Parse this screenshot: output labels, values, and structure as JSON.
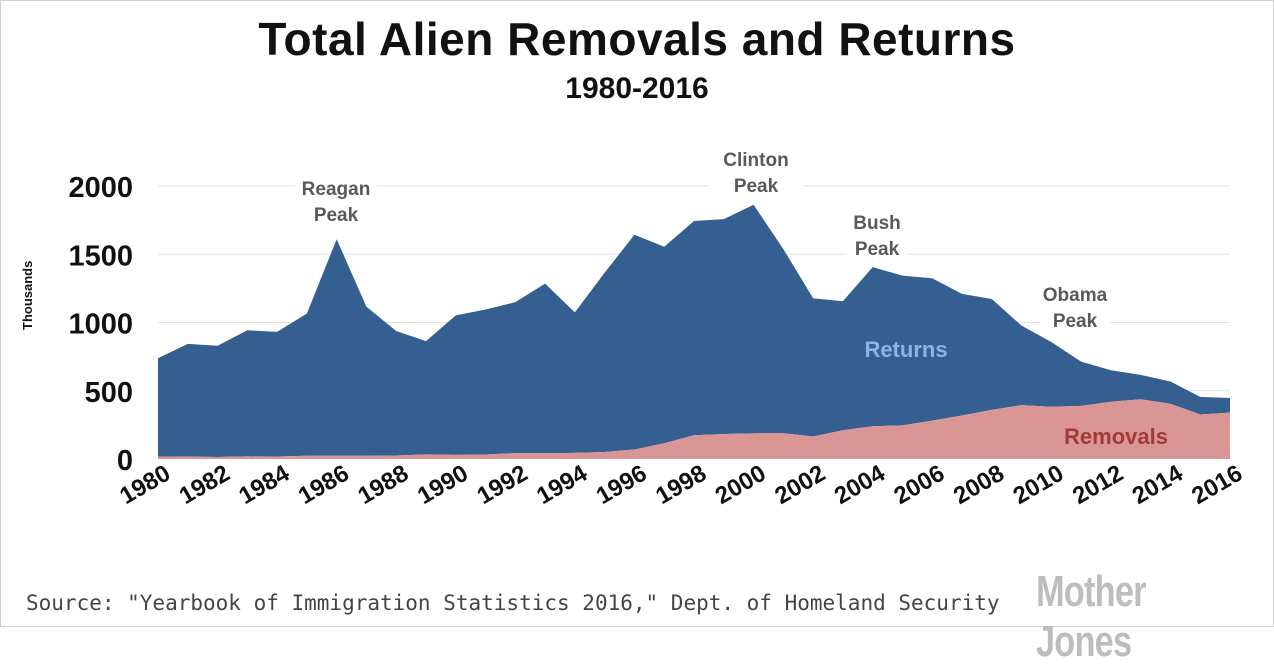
{
  "brand": "Mother Jones",
  "source": "Source: \"Yearbook of Immigration Statistics 2016,\" Dept. of Homeland Security",
  "colors": {
    "returns": "#365f91",
    "removals": "#d99694",
    "returns_label": "#8db3e2",
    "removals_label": "#a03b3a",
    "annotation": "#595959",
    "grid": "#e0e0e0"
  },
  "chart_data": {
    "type": "area",
    "title": "Total Alien Removals and Returns",
    "subtitle": "1980-2016",
    "ylabel": "Thousands",
    "xlabel": "",
    "ylim": [
      0,
      2000
    ],
    "yticks": [
      0,
      500,
      1000,
      1500,
      2000
    ],
    "grid": true,
    "stacked": true,
    "x": [
      1980,
      1981,
      1982,
      1983,
      1984,
      1985,
      1986,
      1987,
      1988,
      1989,
      1990,
      1991,
      1992,
      1993,
      1994,
      1995,
      1996,
      1997,
      1998,
      1999,
      2000,
      2001,
      2002,
      2003,
      2004,
      2005,
      2006,
      2007,
      2008,
      2009,
      2010,
      2011,
      2012,
      2013,
      2014,
      2015,
      2016
    ],
    "xtick_labels": [
      "1980",
      "1982",
      "1984",
      "1986",
      "1988",
      "1990",
      "1992",
      "1994",
      "1996",
      "1998",
      "2000",
      "2002",
      "2004",
      "2006",
      "2008",
      "2010",
      "2012",
      "2014",
      "2016"
    ],
    "series": [
      {
        "name": "Removals",
        "values": [
          18,
          17,
          15,
          19,
          18,
          24,
          24,
          24,
          26,
          34,
          30,
          33,
          43,
          42,
          45,
          51,
          70,
          115,
          174,
          183,
          188,
          189,
          165,
          211,
          240,
          246,
          281,
          319,
          360,
          395,
          383,
          389,
          419,
          438,
          405,
          326,
          340
        ]
      },
      {
        "name": "Returns",
        "values": [
          720,
          826,
          815,
          924,
          913,
          1042,
          1586,
          1091,
          912,
          830,
          1022,
          1062,
          1106,
          1243,
          1029,
          1314,
          1573,
          1440,
          1570,
          1574,
          1675,
          1349,
          1013,
          945,
          1166,
          1097,
          1043,
          891,
          812,
          582,
          474,
          324,
          231,
          178,
          163,
          129,
          107
        ]
      }
    ],
    "series_labels": [
      "Returns",
      "Removals"
    ],
    "annotations": [
      {
        "text": "Reagan Peak",
        "line1": "Reagan",
        "line2": "Peak",
        "x": 1986
      },
      {
        "text": "Clinton Peak",
        "line1": "Clinton",
        "line2": "Peak",
        "x": 2000
      },
      {
        "text": "Bush Peak",
        "line1": "Bush",
        "line2": "Peak",
        "x": 2004
      },
      {
        "text": "Obama Peak",
        "line1": "Obama",
        "line2": "Peak",
        "x": 2010
      }
    ]
  }
}
